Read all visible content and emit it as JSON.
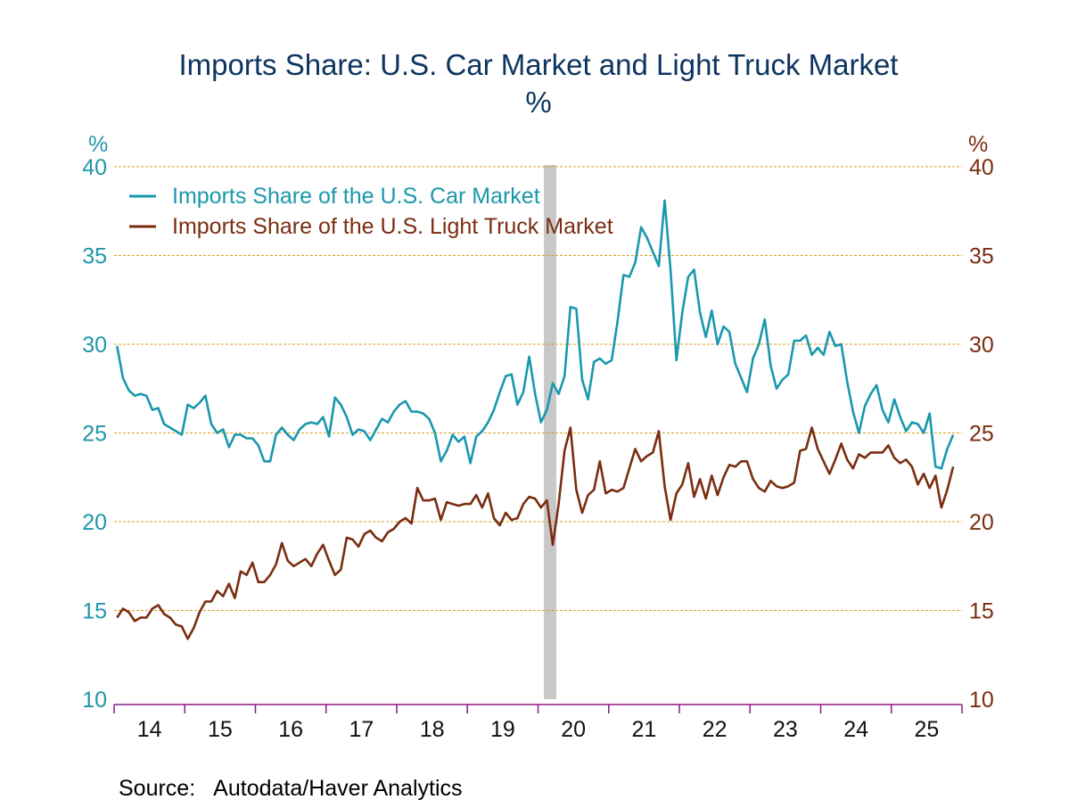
{
  "chart_data": {
    "type": "line",
    "title": "Imports Share: U.S. Car Market and Light Truck Market",
    "subtitle": "%",
    "ylabel_left": "%",
    "ylabel_right": "%",
    "ylim": [
      10,
      40
    ],
    "yticks": [
      10,
      15,
      20,
      25,
      30,
      35,
      40
    ],
    "x_start": "2014-01",
    "x_frequency": "monthly",
    "x_range": [
      "2014-01",
      "2025-12"
    ],
    "xtick_labels": [
      "14",
      "15",
      "16",
      "17",
      "18",
      "19",
      "20",
      "21",
      "22",
      "23",
      "24",
      "25"
    ],
    "grid": true,
    "legend_position": "top-left",
    "recession_shading": {
      "start": "2020-02",
      "end": "2020-04"
    },
    "series": [
      {
        "name": "Imports Share of the U.S. Car Market",
        "color": "#1a98ad",
        "axis": "left",
        "values": [
          29.9,
          28.1,
          27.4,
          27.1,
          27.2,
          27.1,
          26.3,
          26.4,
          25.5,
          25.3,
          25.1,
          24.9,
          26.6,
          26.4,
          26.7,
          27.1,
          25.5,
          25.0,
          25.2,
          24.2,
          24.9,
          24.9,
          24.7,
          24.7,
          24.3,
          23.4,
          23.4,
          24.9,
          25.3,
          24.9,
          24.6,
          25.2,
          25.5,
          25.6,
          25.5,
          25.9,
          24.8,
          27.0,
          26.6,
          25.9,
          24.9,
          25.2,
          25.1,
          24.6,
          25.2,
          25.8,
          25.6,
          26.2,
          26.6,
          26.8,
          26.2,
          26.2,
          26.1,
          25.8,
          25.0,
          23.4,
          24.0,
          24.9,
          24.5,
          24.8,
          23.3,
          24.8,
          25.1,
          25.6,
          26.3,
          27.3,
          28.2,
          28.3,
          26.6,
          27.3,
          29.3,
          27.2,
          25.6,
          26.3,
          27.8,
          27.2,
          28.2,
          32.1,
          32.0,
          28.0,
          26.9,
          29.0,
          29.2,
          28.9,
          29.1,
          31.3,
          33.9,
          33.8,
          34.6,
          36.6,
          36.0,
          35.2,
          34.4,
          38.1,
          34.2,
          29.1,
          31.8,
          33.8,
          34.2,
          31.8,
          30.4,
          31.9,
          30.0,
          31.0,
          30.7,
          28.9,
          28.1,
          27.3,
          29.2,
          30.0,
          31.4,
          28.8,
          27.5,
          28.0,
          28.3,
          30.2,
          30.2,
          30.5,
          29.4,
          29.8,
          29.4,
          30.7,
          29.9,
          30.0,
          27.9,
          26.2,
          25.0,
          26.5,
          27.2,
          27.7,
          26.3,
          25.6,
          26.9,
          25.9,
          25.1,
          25.6,
          25.5,
          25.0,
          26.1,
          23.1,
          23.0,
          24.1,
          24.9
        ]
      },
      {
        "name": "Imports Share of the U.S. Light Truck Market",
        "color": "#7a2d10",
        "axis": "right",
        "values": [
          14.6,
          15.1,
          14.9,
          14.4,
          14.6,
          14.6,
          15.1,
          15.3,
          14.8,
          14.6,
          14.2,
          14.1,
          13.4,
          14.0,
          14.9,
          15.5,
          15.5,
          16.1,
          15.8,
          16.5,
          15.7,
          17.2,
          17.0,
          17.7,
          16.6,
          16.6,
          17.0,
          17.6,
          18.8,
          17.8,
          17.5,
          17.7,
          17.9,
          17.5,
          18.2,
          18.7,
          17.8,
          17.0,
          17.3,
          19.1,
          19.0,
          18.6,
          19.3,
          19.5,
          19.1,
          18.9,
          19.4,
          19.6,
          20.0,
          20.2,
          19.9,
          21.9,
          21.2,
          21.2,
          21.3,
          20.1,
          21.1,
          21.0,
          20.9,
          21.0,
          21.0,
          21.5,
          20.8,
          21.6,
          20.2,
          19.8,
          20.5,
          20.1,
          20.2,
          21.0,
          21.4,
          21.3,
          20.8,
          21.2,
          18.7,
          21.0,
          24.0,
          25.3,
          21.8,
          20.5,
          21.5,
          21.8,
          23.4,
          21.6,
          21.8,
          21.7,
          21.9,
          23.0,
          24.1,
          23.4,
          23.7,
          23.9,
          25.1,
          22.0,
          20.1,
          21.6,
          22.1,
          23.3,
          21.4,
          22.4,
          21.3,
          22.6,
          21.5,
          22.5,
          23.2,
          23.1,
          23.4,
          23.4,
          22.4,
          21.9,
          21.7,
          22.3,
          22.0,
          21.9,
          22.0,
          22.2,
          24.0,
          24.1,
          25.3,
          24.1,
          23.4,
          22.7,
          23.5,
          24.4,
          23.5,
          23.0,
          23.8,
          23.6,
          23.9,
          23.9,
          23.9,
          24.3,
          23.6,
          23.3,
          23.5,
          23.1,
          22.1,
          22.7,
          21.9,
          22.6,
          20.8,
          21.8,
          23.1
        ]
      }
    ]
  },
  "source": {
    "label": "Source:",
    "text": "Autodata/Haver Analytics"
  },
  "colors": {
    "title": "#0d3560",
    "left_axis": "#2196a8",
    "right_axis": "#7a2d10",
    "grid": "#d9a020",
    "x_axis": "#8a1a8a",
    "recession": "#c8c8c8"
  }
}
